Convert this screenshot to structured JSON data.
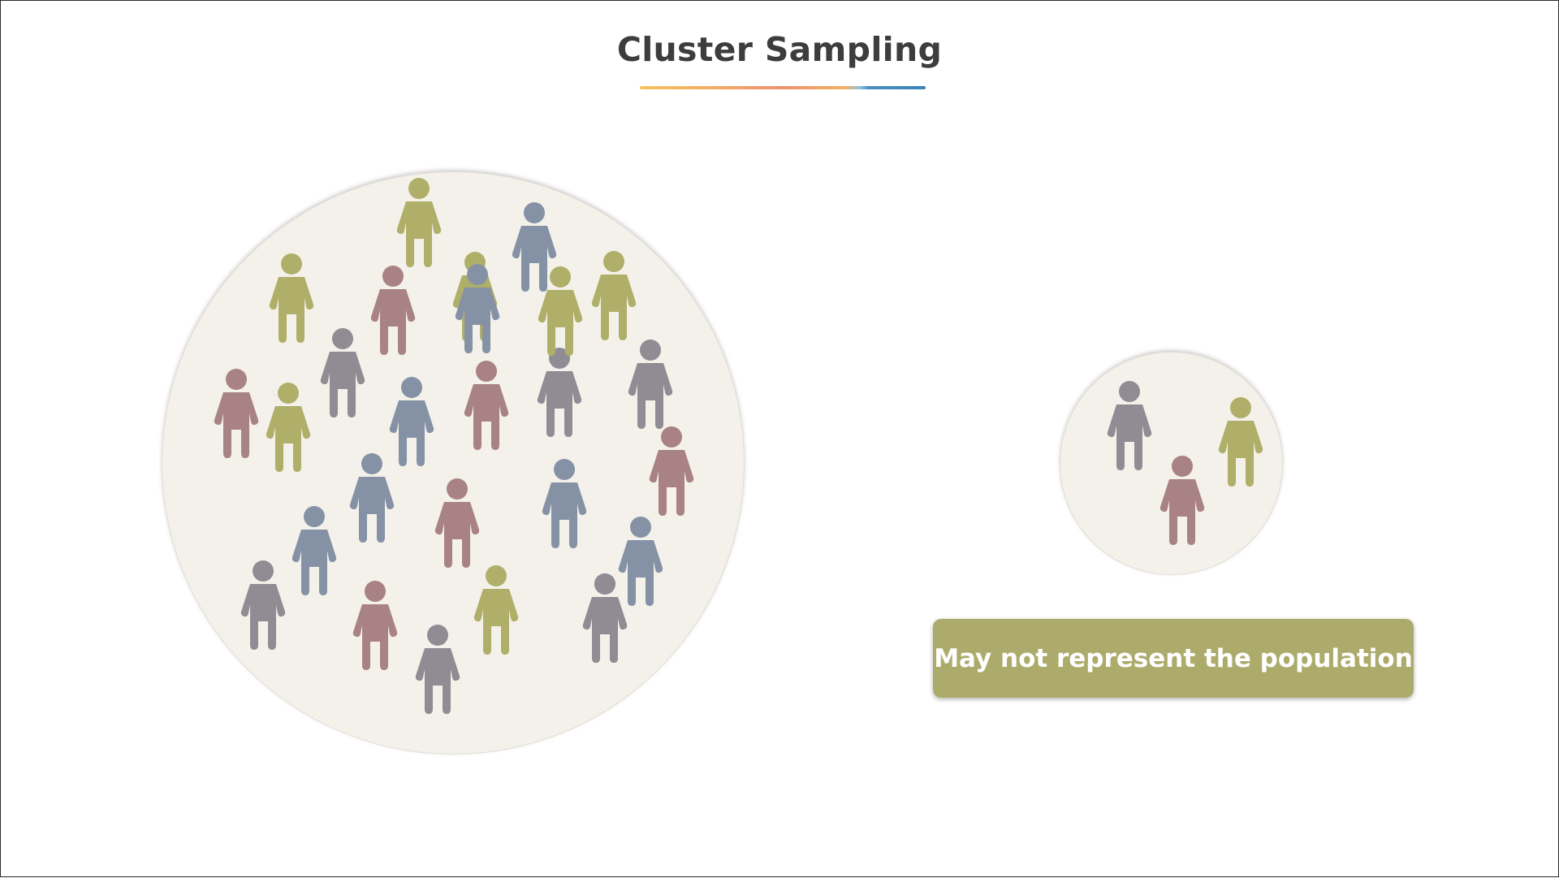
{
  "title": "Cluster Sampling",
  "note": "May not represent the population",
  "colors": {
    "olive": "#b0af6a",
    "blue": "#8592a6",
    "rose": "#a88285",
    "gray": "#8f8c94",
    "circle_fill": "#f4f1ea",
    "note_fill": "#acab6b",
    "title_text": "#3d3d3d"
  },
  "population": {
    "count": 27,
    "people": [
      {
        "color": "olive"
      },
      {
        "color": "blue"
      },
      {
        "color": "olive"
      },
      {
        "color": "rose"
      },
      {
        "color": "olive"
      },
      {
        "color": "olive"
      },
      {
        "color": "gray"
      },
      {
        "color": "gray"
      },
      {
        "color": "rose"
      },
      {
        "color": "olive"
      },
      {
        "color": "blue"
      },
      {
        "color": "rose"
      },
      {
        "color": "gray"
      },
      {
        "color": "rose"
      },
      {
        "color": "blue"
      },
      {
        "color": "rose"
      },
      {
        "color": "blue"
      },
      {
        "color": "blue"
      },
      {
        "color": "blue"
      },
      {
        "color": "gray"
      },
      {
        "color": "rose"
      },
      {
        "color": "olive"
      },
      {
        "color": "gray"
      },
      {
        "color": "gray"
      },
      {
        "color": "blue"
      },
      {
        "color": "olive"
      },
      {
        "color": "gray"
      }
    ]
  },
  "sample": {
    "count": 3,
    "people": [
      {
        "color": "gray"
      },
      {
        "color": "olive"
      },
      {
        "color": "rose"
      }
    ]
  }
}
